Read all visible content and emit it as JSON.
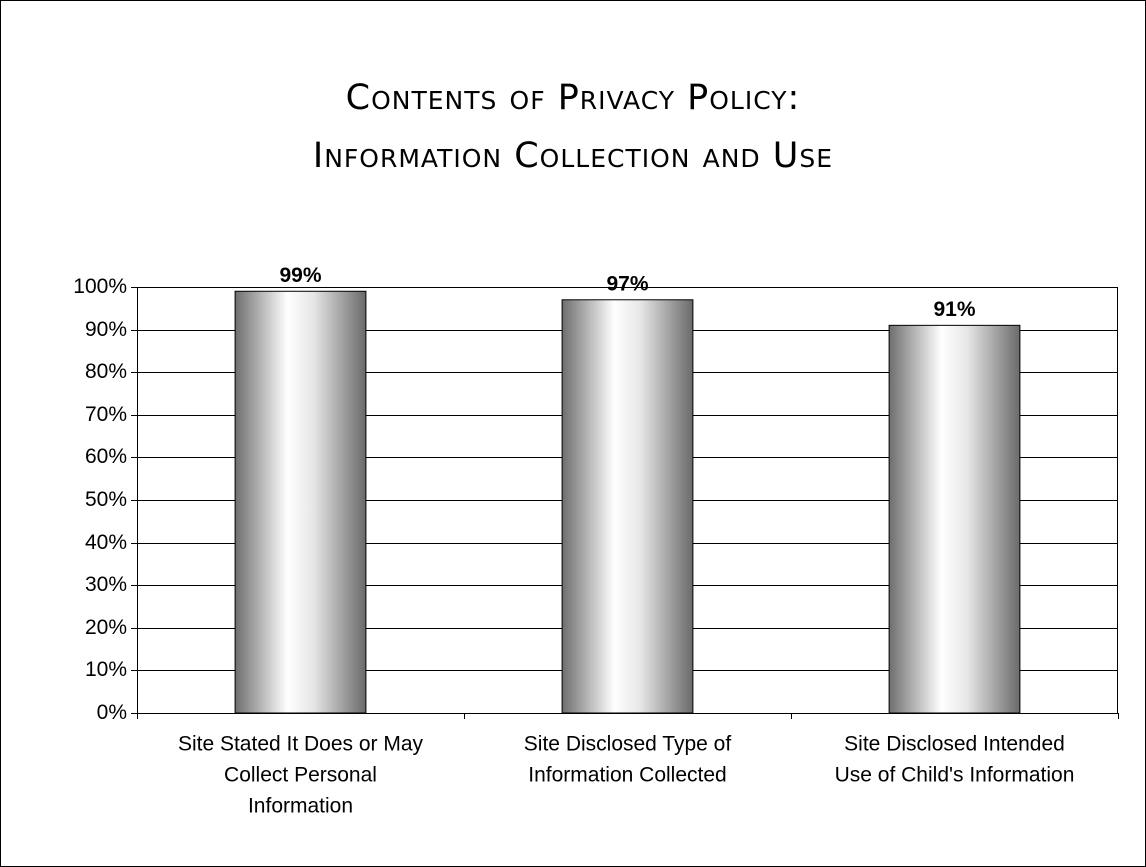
{
  "chart_data": {
    "type": "bar",
    "title": [
      "Contents of Privacy Policy:",
      "Information Collection and Use"
    ],
    "categories": [
      [
        "Site Stated It Does or May",
        "Collect Personal",
        "Information"
      ],
      [
        "Site Disclosed Type of",
        "Information Collected"
      ],
      [
        "Site Disclosed Intended",
        "Use of Child's Information"
      ]
    ],
    "values": [
      99,
      97,
      91
    ],
    "value_labels": [
      "99%",
      "97%",
      "91%"
    ],
    "ylim": [
      0,
      100
    ],
    "yticks": [
      {
        "value": 0,
        "label": "0%"
      },
      {
        "value": 10,
        "label": "10%"
      },
      {
        "value": 20,
        "label": "20%"
      },
      {
        "value": 30,
        "label": "30%"
      },
      {
        "value": 40,
        "label": "40%"
      },
      {
        "value": 50,
        "label": "50%"
      },
      {
        "value": 60,
        "label": "60%"
      },
      {
        "value": 70,
        "label": "70%"
      },
      {
        "value": 80,
        "label": "80%"
      },
      {
        "value": 90,
        "label": "90%"
      },
      {
        "value": 100,
        "label": "100%"
      }
    ],
    "grid": true
  }
}
